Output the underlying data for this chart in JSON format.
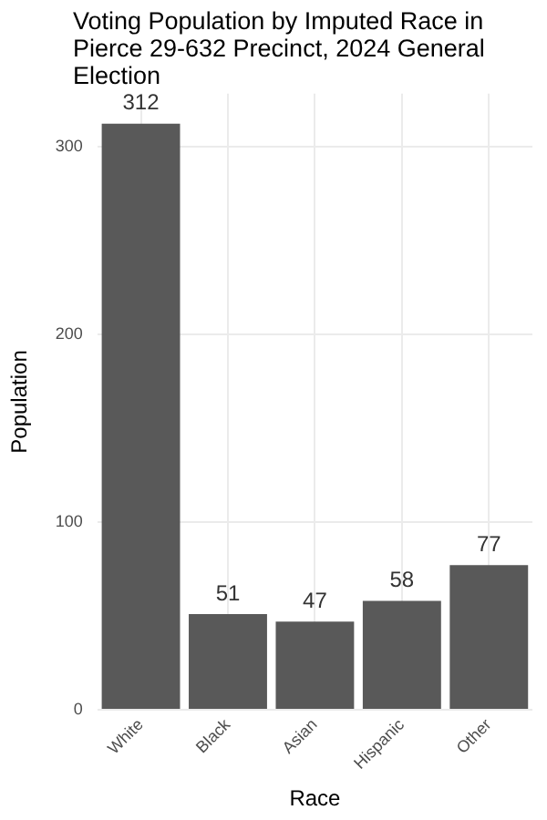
{
  "chart_data": {
    "type": "bar",
    "title": "Voting Population by Imputed Race in Pierce 29-632 Precinct,  2024 General Election",
    "xlabel": "Race",
    "ylabel": "Population",
    "categories": [
      "White",
      "Black",
      "Asian",
      "Hispanic",
      "Other"
    ],
    "values": [
      312,
      51,
      47,
      58,
      77
    ],
    "color": "#595959",
    "ylim": [
      0,
      328
    ],
    "yticks": [
      0,
      100,
      200,
      300
    ],
    "grid": true,
    "data_labels": true
  }
}
